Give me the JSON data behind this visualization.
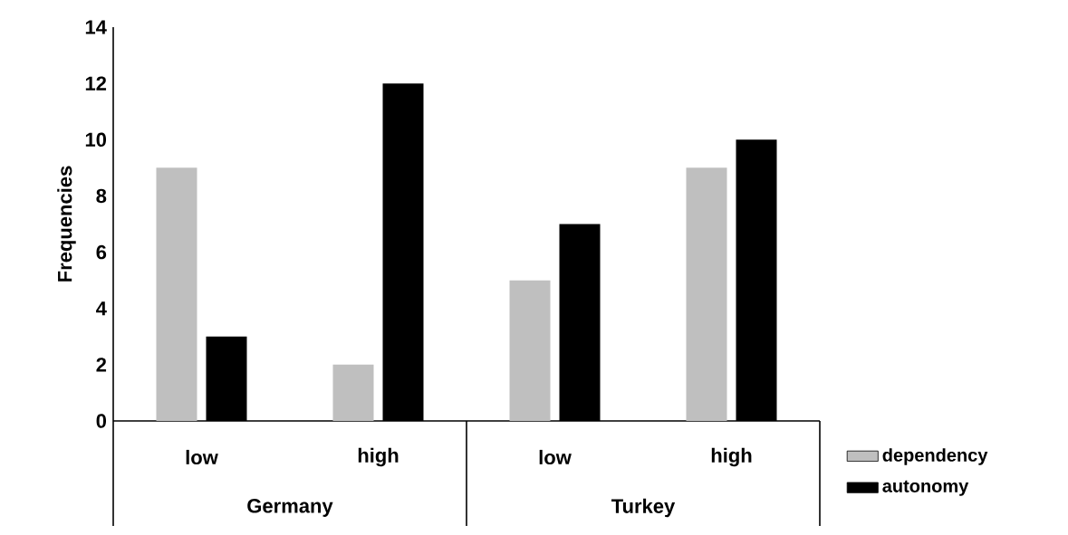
{
  "chart_data": {
    "type": "bar",
    "ylabel": "Frequencies",
    "categories": [
      "low",
      "high",
      "low",
      "high"
    ],
    "annotations": [
      "Germany",
      "Turkey"
    ],
    "series": [
      {
        "name": "dependency",
        "color": "#bfbfbf",
        "values": [
          9,
          2,
          5,
          9
        ]
      },
      {
        "name": "autonomy",
        "color": "#000000",
        "values": [
          3,
          12,
          7,
          10
        ]
      }
    ],
    "ylim": [
      0,
      14
    ],
    "yticks": [
      0,
      2,
      4,
      6,
      8,
      10,
      12,
      14
    ],
    "grid": false,
    "legend": "right"
  }
}
